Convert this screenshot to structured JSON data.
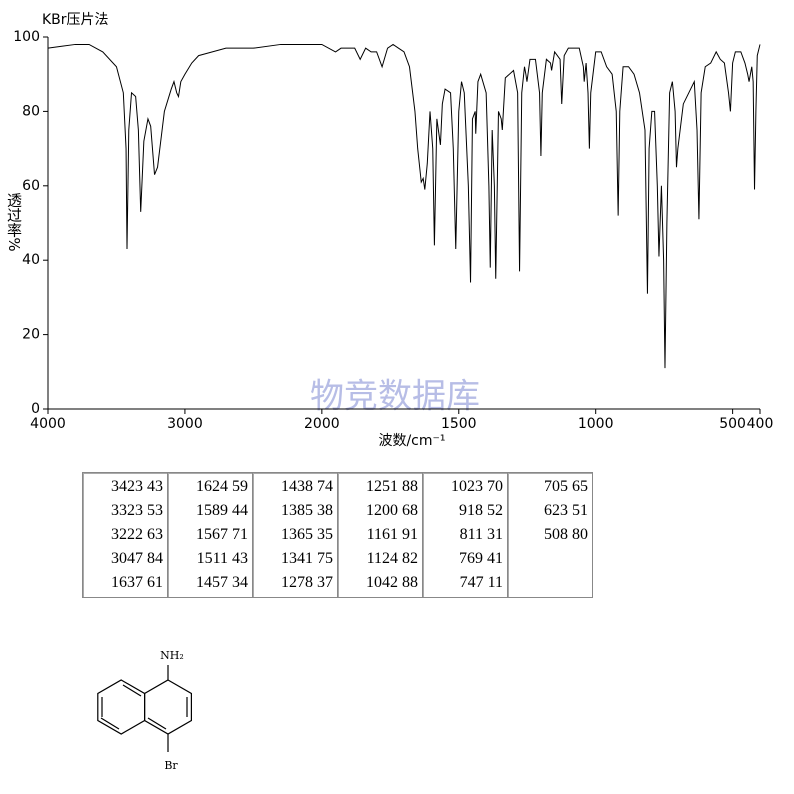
{
  "chart_data": {
    "type": "line",
    "title": "KBr压片法",
    "y_label": "透过率%",
    "x_label": "波数/cm⁻¹",
    "watermark": "物竞数据库",
    "xlim": [
      4000,
      400
    ],
    "x_scale_break": 2000,
    "xticks": [
      4000,
      3000,
      2000,
      1500,
      1000,
      500,
      400
    ],
    "ylim": [
      0,
      100
    ],
    "yticks": [
      0,
      20,
      40,
      60,
      80,
      100
    ],
    "color": "#000000",
    "x": [
      4000,
      3900,
      3800,
      3700,
      3600,
      3500,
      3450,
      3430,
      3423,
      3410,
      3390,
      3360,
      3340,
      3323,
      3300,
      3270,
      3250,
      3222,
      3200,
      3150,
      3100,
      3080,
      3060,
      3047,
      3030,
      3000,
      2950,
      2900,
      2800,
      2700,
      2500,
      2300,
      2100,
      2000,
      1950,
      1930,
      1900,
      1880,
      1860,
      1840,
      1820,
      1800,
      1780,
      1760,
      1740,
      1720,
      1700,
      1680,
      1660,
      1650,
      1637,
      1630,
      1624,
      1615,
      1605,
      1595,
      1589,
      1580,
      1567,
      1560,
      1550,
      1530,
      1520,
      1511,
      1500,
      1490,
      1480,
      1465,
      1457,
      1450,
      1440,
      1438,
      1430,
      1420,
      1400,
      1390,
      1385,
      1378,
      1370,
      1365,
      1355,
      1345,
      1341,
      1330,
      1300,
      1285,
      1278,
      1270,
      1260,
      1255,
      1251,
      1240,
      1220,
      1205,
      1200,
      1195,
      1180,
      1165,
      1161,
      1150,
      1130,
      1124,
      1115,
      1100,
      1060,
      1045,
      1042,
      1035,
      1028,
      1023,
      1018,
      1000,
      980,
      960,
      940,
      925,
      918,
      912,
      900,
      880,
      860,
      840,
      820,
      811,
      805,
      795,
      785,
      775,
      769,
      760,
      752,
      747,
      740,
      730,
      720,
      710,
      705,
      700,
      680,
      660,
      640,
      630,
      623,
      615,
      600,
      580,
      560,
      545,
      530,
      515,
      508,
      500,
      490,
      470,
      455,
      445,
      440,
      430,
      425,
      420,
      415,
      410,
      400
    ],
    "values": [
      97,
      97.5,
      98,
      98,
      96,
      92,
      85,
      70,
      43,
      75,
      85,
      84,
      75,
      53,
      72,
      78,
      76,
      63,
      65,
      80,
      86,
      88,
      85,
      84,
      88,
      90,
      93,
      95,
      96,
      97,
      97,
      98,
      98,
      98,
      96,
      97,
      97,
      97,
      94,
      97,
      96,
      96,
      92,
      97,
      98,
      97,
      96,
      92,
      80,
      70,
      61,
      62,
      59,
      66,
      80,
      70,
      44,
      78,
      71,
      82,
      86,
      85,
      70,
      43,
      80,
      88,
      85,
      60,
      34,
      78,
      80,
      74,
      88,
      90,
      85,
      60,
      38,
      75,
      60,
      35,
      80,
      78,
      75,
      89,
      91,
      85,
      37,
      85,
      92,
      90,
      88,
      94,
      94,
      85,
      68,
      85,
      94,
      93,
      91,
      96,
      94,
      82,
      95,
      97,
      97,
      92,
      88,
      93,
      85,
      70,
      85,
      96,
      96,
      92,
      90,
      80,
      52,
      80,
      92,
      92,
      90,
      85,
      75,
      31,
      70,
      80,
      80,
      60,
      41,
      60,
      40,
      11,
      50,
      85,
      88,
      80,
      65,
      70,
      82,
      85,
      88,
      75,
      51,
      85,
      92,
      93,
      96,
      94,
      93,
      85,
      80,
      93,
      96,
      96,
      93,
      90,
      88,
      92,
      88,
      59,
      80,
      95,
      98
    ]
  },
  "table": {
    "columns": [
      [
        "3423 43",
        "3323 53",
        "3222 63",
        "3047 84",
        "1637 61"
      ],
      [
        "1624 59",
        "1589 44",
        "1567 71",
        "1511 43",
        "1457 34"
      ],
      [
        "1438 74",
        "1385 38",
        "1365 35",
        "1341 75",
        "1278 37"
      ],
      [
        "1251 88",
        "1200 68",
        "1161 91",
        "1124 82",
        "1042 88"
      ],
      [
        "1023 70",
        "918 52",
        "811 31",
        "769 41",
        "747 11"
      ],
      [
        "705 65",
        "623 51",
        "508 80"
      ]
    ]
  },
  "structure": {
    "top_label": "NH₂",
    "bottom_label": "Br"
  }
}
